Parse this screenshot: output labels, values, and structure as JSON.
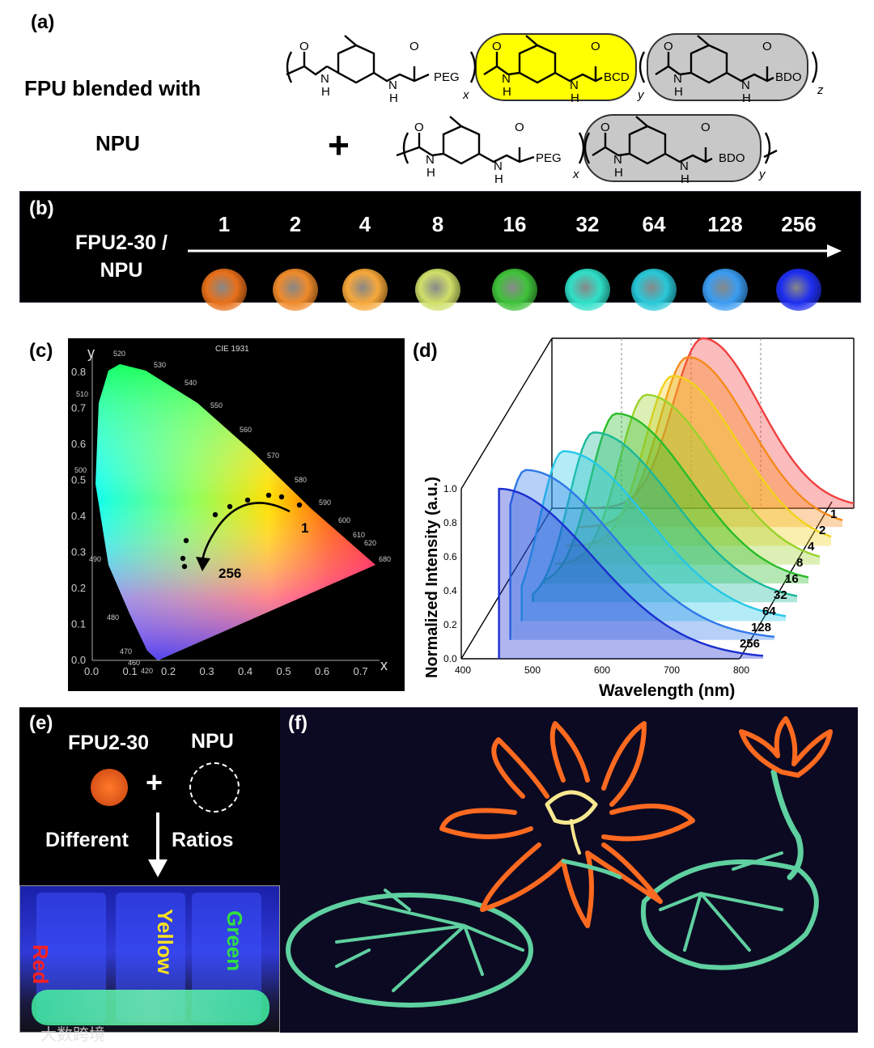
{
  "panel_a": {
    "label": "(a)",
    "line1": "FPU blended with",
    "line2": "NPU",
    "plus": "+",
    "fpu_blocks": [
      "PEG",
      "BCD",
      "BDO"
    ],
    "fpu_subscripts": [
      "x",
      "y",
      "z"
    ],
    "npu_blocks": [
      "PEG",
      "BDO"
    ],
    "npu_subscripts": [
      "x",
      "y"
    ],
    "nh": "N",
    "h": "H",
    "o": "O"
  },
  "panel_b": {
    "label": "(b)",
    "sample_label_1": "FPU2-30 /",
    "sample_label_2": "NPU",
    "ratios": [
      "1",
      "2",
      "4",
      "8",
      "16",
      "32",
      "64",
      "128",
      "256"
    ],
    "colors": [
      "#e8701a",
      "#f08a2a",
      "#f7a83a",
      "#cfe06a",
      "#3fc23a",
      "#2fe0c8",
      "#28c8d8",
      "#3a9cf2",
      "#1e2ef0"
    ]
  },
  "panel_c": {
    "label": "(c)",
    "title": "CIE 1931",
    "x_axis": "x",
    "y_axis": "y",
    "x_ticks": [
      "0.0",
      "0.1",
      "0.2",
      "0.3",
      "0.4",
      "0.5",
      "0.6",
      "0.7"
    ],
    "y_ticks": [
      "0.0",
      "0.1",
      "0.2",
      "0.3",
      "0.4",
      "0.5",
      "0.6",
      "0.7",
      "0.8"
    ],
    "wavelengths": [
      "520",
      "530",
      "540",
      "550",
      "560",
      "570",
      "580",
      "590",
      "600",
      "610",
      "620",
      "680",
      "510",
      "500",
      "490",
      "480",
      "470",
      "460",
      "420"
    ],
    "start_label": "1",
    "end_label": "256"
  },
  "panel_d": {
    "label": "(d)",
    "xlabel": "Wavelength (nm)",
    "ylabel": "Normalized Intensity (a.u.)",
    "x_ticks": [
      "400",
      "500",
      "600",
      "700",
      "800"
    ],
    "y_ticks": [
      "0.0",
      "0.2",
      "0.4",
      "0.6",
      "0.8",
      "1.0"
    ],
    "series_labels": [
      "1",
      "2",
      "4",
      "8",
      "16",
      "32",
      "64",
      "128",
      "256"
    ]
  },
  "chart_data": {
    "type": "line",
    "xlabel": "Wavelength (nm)",
    "ylabel": "Normalized Intensity (a.u.)",
    "xlim": [
      400,
      800
    ],
    "ylim": [
      0,
      1.0
    ],
    "series": [
      {
        "name": "1",
        "peak_nm": 600,
        "color": "#f04040"
      },
      {
        "name": "2",
        "peak_nm": 595,
        "color": "#f58a1a"
      },
      {
        "name": "4",
        "peak_nm": 590,
        "color": "#f2d21a"
      },
      {
        "name": "8",
        "peak_nm": 570,
        "color": "#9ad22a"
      },
      {
        "name": "16",
        "peak_nm": 545,
        "color": "#2abc2a"
      },
      {
        "name": "32",
        "peak_nm": 530,
        "color": "#1ab89a"
      },
      {
        "name": "64",
        "peak_nm": 505,
        "color": "#25c8e8"
      },
      {
        "name": "128",
        "peak_nm": 470,
        "color": "#2e78e8"
      },
      {
        "name": "256",
        "peak_nm": 450,
        "color": "#1a2ed0"
      }
    ]
  },
  "panel_e": {
    "label": "(e)",
    "left": "FPU2-30",
    "right": "NPU",
    "plus": "+",
    "diff": "Different",
    "ratios": "Ratios",
    "vial_labels": [
      "Red",
      "Yellow",
      "Green"
    ]
  },
  "panel_f": {
    "label": "(f)"
  },
  "watermark": "大数跨境"
}
